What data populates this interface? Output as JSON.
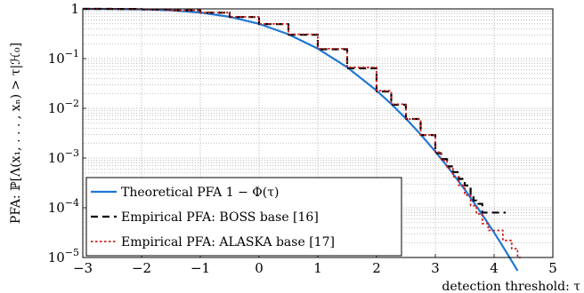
{
  "chart_data": {
    "type": "line",
    "title": "",
    "xlabel": "detection threshold: τ",
    "ylabel": "PFA: ℙ[Λ(x₁, . . . , xₙ) > τ|ℋ₀]",
    "xlim": [
      -3,
      5
    ],
    "ylim": [
      1e-05,
      1
    ],
    "yscale": "log",
    "grid": true,
    "legend_position": "bottom-left",
    "x_ticks": [
      -3,
      -2,
      -1,
      0,
      1,
      2,
      3,
      4,
      5
    ],
    "x_tick_labels": [
      "−3",
      "−2",
      "−1",
      "0",
      "1",
      "2",
      "3",
      "4",
      "5"
    ],
    "y_ticks": [
      1e-05,
      0.0001,
      0.001,
      0.01,
      0.1,
      1
    ],
    "y_tick_labels": [
      {
        "base": "10",
        "exp": "−5"
      },
      {
        "base": "10",
        "exp": "−4"
      },
      {
        "base": "10",
        "exp": "−3"
      },
      {
        "base": "10",
        "exp": "−2"
      },
      {
        "base": "10",
        "exp": "−1"
      },
      {
        "base": "1",
        "exp": ""
      }
    ],
    "series": [
      {
        "name": "Theoretical PFA 1 − Φ(τ)",
        "color": "#1f77d4",
        "style": "solid",
        "x": [
          -3,
          -2.5,
          -2,
          -1.5,
          -1,
          -0.5,
          0,
          0.5,
          1,
          1.5,
          2,
          2.25,
          2.5,
          2.75,
          3,
          3.25,
          3.5,
          3.75,
          4,
          4.1,
          4.2,
          4.3,
          4.4
        ],
        "y": [
          0.99865,
          0.99379,
          0.97725,
          0.93319,
          0.84134,
          0.69146,
          0.5,
          0.30854,
          0.15866,
          0.066807,
          0.02275,
          0.012224,
          0.00621,
          0.00298,
          0.00135,
          0.000577,
          0.000233,
          8.84e-05,
          3.17e-05,
          2.07e-05,
          1.33e-05,
          8.5e-06,
          5.4e-06
        ]
      },
      {
        "name": "Empirical PFA: BOSS base [16]",
        "color": "#000000",
        "style": "dashed",
        "x": [
          -3,
          -2.5,
          -2,
          -1.5,
          -1,
          -0.5,
          0,
          0.5,
          1,
          1.5,
          2,
          2.25,
          2.5,
          2.75,
          3,
          3.1,
          3.2,
          3.3,
          3.4,
          3.5,
          3.6,
          3.65,
          3.7,
          3.75,
          3.8,
          3.9,
          4.0,
          4.1,
          4.2
        ],
        "y": [
          0.9987,
          0.9938,
          0.9769,
          0.932,
          0.838,
          0.686,
          0.494,
          0.302,
          0.154,
          0.064,
          0.0218,
          0.0118,
          0.0061,
          0.0029,
          0.00125,
          0.00095,
          0.00068,
          0.00052,
          0.00038,
          0.00028,
          0.00018,
          0.00014,
          0.00012,
          0.00012,
          8e-05,
          8e-05,
          8e-05,
          8e-05,
          8e-05
        ]
      },
      {
        "name": "Empirical PFA: ALASKA base [17]",
        "color": "#cc1f1f",
        "style": "dotted",
        "x": [
          -3,
          -2.5,
          -2,
          -1.5,
          -1,
          -0.5,
          0,
          0.5,
          1,
          1.5,
          2,
          2.25,
          2.5,
          2.75,
          3,
          3.1,
          3.2,
          3.3,
          3.4,
          3.5,
          3.6,
          3.7,
          3.8,
          3.85,
          3.9,
          4.0,
          4.1,
          4.15,
          4.2,
          4.3,
          4.4,
          4.45
        ],
        "y": [
          0.9986,
          0.9937,
          0.9771,
          0.9328,
          0.8408,
          0.6906,
          0.4992,
          0.3079,
          0.1582,
          0.0665,
          0.0226,
          0.0121,
          0.0061,
          0.00292,
          0.00131,
          0.0009,
          0.00062,
          0.00042,
          0.00028,
          0.00018,
          0.00011,
          7.5e-05,
          4.8e-05,
          4.8e-05,
          3.5e-05,
          3.5e-05,
          3.5e-05,
          2.2e-05,
          2.2e-05,
          1.5e-05,
          1e-05,
          1e-05
        ]
      }
    ]
  }
}
